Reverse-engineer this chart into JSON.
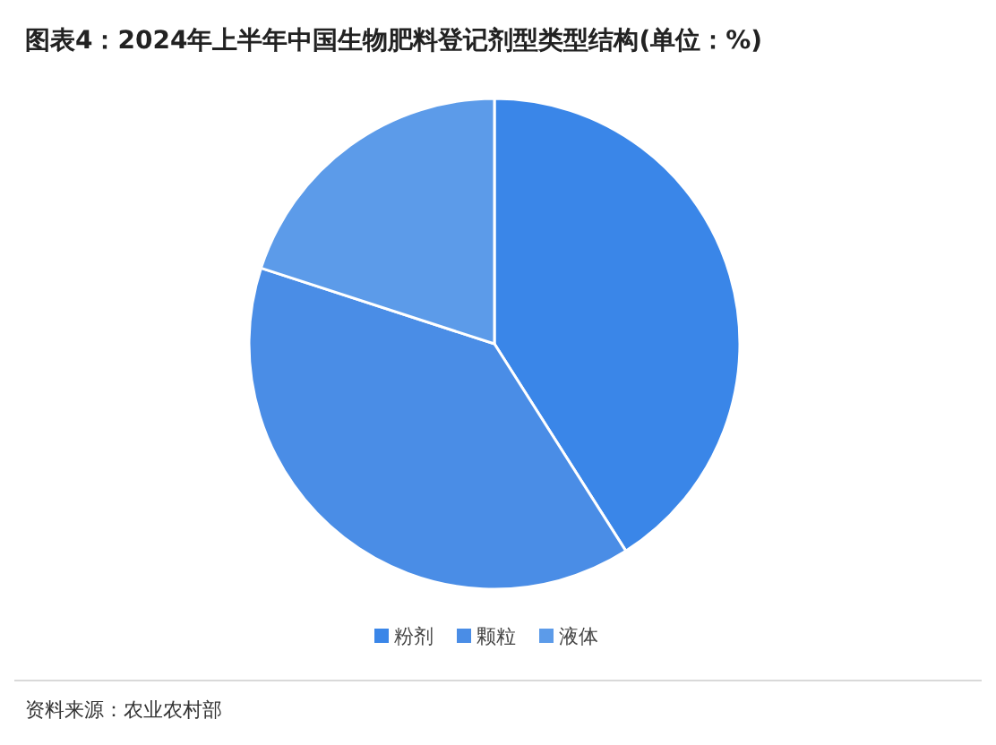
{
  "chart_data": {
    "type": "pie",
    "title": "图表4：2024年上半年中国生物肥料登记剂型类型结构(单位：%)",
    "categories": [
      "粉剂",
      "颗粒",
      "液体"
    ],
    "values": [
      41,
      39,
      20
    ],
    "colors": [
      "#3a86e8",
      "#4a8de6",
      "#5c9be9"
    ],
    "legend": "bottom",
    "annotations": [
      "资料来源：农业农村部"
    ]
  }
}
